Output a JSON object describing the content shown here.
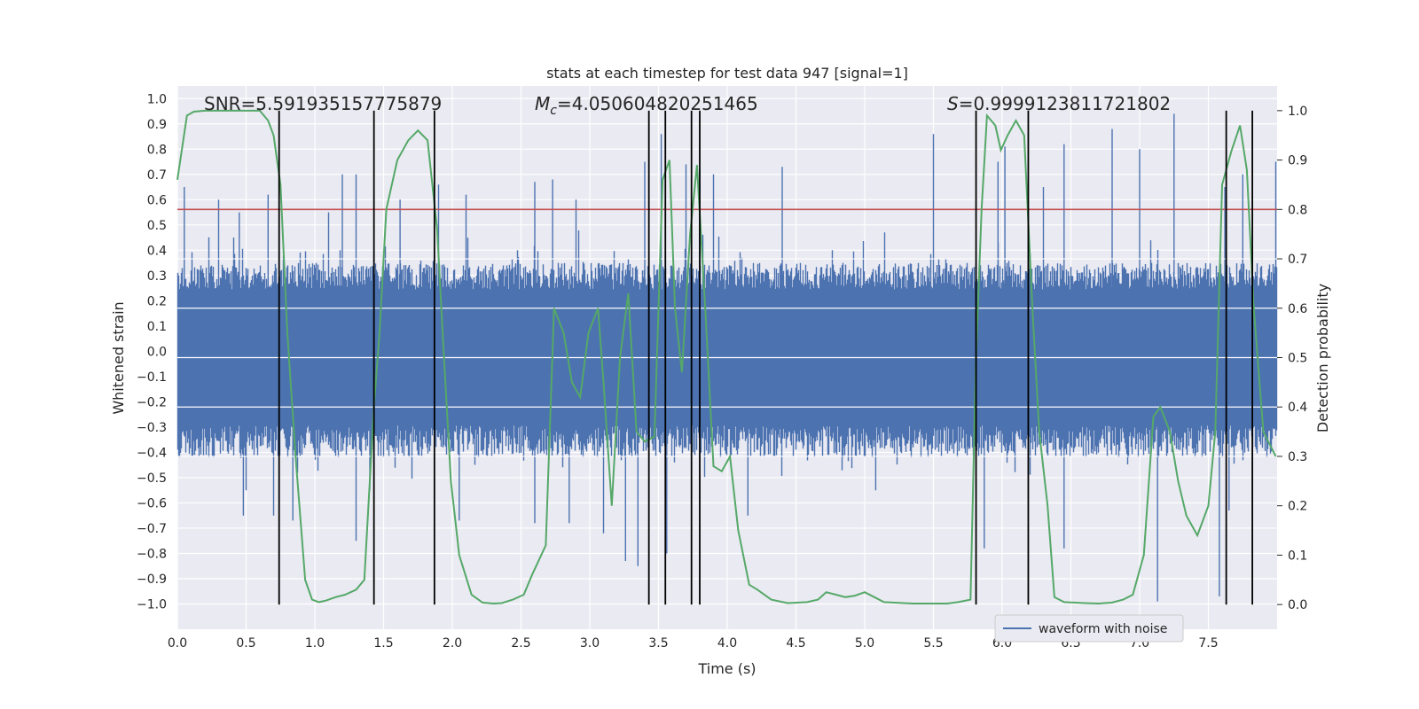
{
  "chart_data": {
    "type": "line",
    "title": "stats at each timestep for test data 947 [signal=1]",
    "xlabel": "Time (s)",
    "ylabel": "Whitened strain",
    "y2label": "Detection probability",
    "xlim": [
      0,
      8
    ],
    "ylim": [
      -1.1,
      1.05
    ],
    "y2lim": [
      -0.05,
      1.05
    ],
    "xticks": [
      "0.0",
      "0.5",
      "1.0",
      "1.5",
      "2.0",
      "2.5",
      "3.0",
      "3.5",
      "4.0",
      "4.5",
      "5.0",
      "5.5",
      "6.0",
      "6.5",
      "7.0",
      "7.5"
    ],
    "yticks": [
      "1.0",
      "0.9",
      "0.8",
      "0.7",
      "0.6",
      "0.5",
      "0.4",
      "0.3",
      "0.2",
      "0.1",
      "0.0",
      "−0.1",
      "−0.2",
      "−0.3",
      "−0.4",
      "−0.5",
      "−0.6",
      "−0.7",
      "−0.8",
      "−0.9",
      "−1.0"
    ],
    "y2ticks": [
      "1.0",
      "0.9",
      "0.8",
      "0.7",
      "0.6",
      "0.5",
      "0.4",
      "0.3",
      "0.2",
      "0.1",
      "0.0"
    ],
    "annotations": {
      "snr": "SNR=5.591935157775879",
      "mc_symbol": "M",
      "mc_sub": "c",
      "mc_value": "=4.050604820251465",
      "s_symbol": "S",
      "s_value": "=0.9999123811721802"
    },
    "legend": {
      "label": "waveform with noise",
      "location": "lower-right"
    },
    "threshold": {
      "y2": 0.8,
      "color": "#c44e52"
    },
    "markers_x": [
      0.74,
      1.43,
      1.87,
      3.43,
      3.55,
      3.74,
      3.8,
      5.81,
      6.19,
      7.63,
      7.82
    ],
    "series": [
      {
        "name": "waveform with noise",
        "axis": "left",
        "color": "#4c72b0",
        "envelope_upper": 0.35,
        "envelope_lower": -0.42,
        "peaks_up": [
          [
            0.05,
            0.65
          ],
          [
            0.3,
            0.6
          ],
          [
            0.45,
            0.55
          ],
          [
            0.66,
            0.62
          ],
          [
            1.1,
            0.55
          ],
          [
            1.2,
            0.7
          ],
          [
            1.3,
            0.7
          ],
          [
            1.62,
            0.6
          ],
          [
            1.9,
            0.66
          ],
          [
            2.1,
            0.62
          ],
          [
            2.6,
            0.67
          ],
          [
            2.73,
            0.68
          ],
          [
            2.9,
            0.6
          ],
          [
            3.4,
            0.75
          ],
          [
            3.52,
            0.86
          ],
          [
            3.7,
            0.74
          ],
          [
            3.8,
            0.72
          ],
          [
            3.9,
            0.7
          ],
          [
            4.4,
            0.73
          ],
          [
            5.5,
            0.86
          ],
          [
            5.97,
            0.75
          ],
          [
            6.02,
            0.81
          ],
          [
            6.3,
            0.65
          ],
          [
            6.45,
            0.82
          ],
          [
            6.8,
            0.88
          ],
          [
            7.0,
            0.8
          ],
          [
            7.25,
            0.94
          ],
          [
            7.62,
            0.65
          ],
          [
            7.75,
            0.7
          ],
          [
            7.99,
            0.75
          ]
        ],
        "peaks_down": [
          [
            0.5,
            -0.55
          ],
          [
            0.48,
            -0.65
          ],
          [
            0.7,
            -0.65
          ],
          [
            0.84,
            -0.67
          ],
          [
            1.3,
            -0.75
          ],
          [
            1.4,
            -0.55
          ],
          [
            2.05,
            -0.67
          ],
          [
            2.6,
            -0.68
          ],
          [
            2.85,
            -0.68
          ],
          [
            3.1,
            -0.72
          ],
          [
            3.26,
            -0.83
          ],
          [
            3.35,
            -0.85
          ],
          [
            3.56,
            -0.8
          ],
          [
            4.15,
            -0.65
          ],
          [
            5.08,
            -0.55
          ],
          [
            5.87,
            -0.78
          ],
          [
            6.45,
            -0.78
          ],
          [
            7.13,
            -0.99
          ],
          [
            7.58,
            -0.97
          ],
          [
            7.65,
            -0.63
          ]
        ]
      },
      {
        "name": "detection probability",
        "axis": "right",
        "color": "#55a868",
        "x": [
          0.0,
          0.07,
          0.12,
          0.2,
          0.6,
          0.66,
          0.7,
          0.75,
          0.8,
          0.86,
          0.93,
          0.98,
          1.03,
          1.08,
          1.15,
          1.22,
          1.3,
          1.36,
          1.43,
          1.47,
          1.52,
          1.6,
          1.68,
          1.75,
          1.82,
          1.89,
          1.93,
          1.99,
          2.05,
          2.14,
          2.22,
          2.3,
          2.36,
          2.44,
          2.52,
          2.58,
          2.68,
          2.74,
          2.81,
          2.87,
          2.93,
          2.99,
          3.06,
          3.1,
          3.16,
          3.22,
          3.28,
          3.34,
          3.4,
          3.47,
          3.53,
          3.58,
          3.62,
          3.67,
          3.73,
          3.78,
          3.84,
          3.9,
          3.96,
          4.02,
          4.08,
          4.16,
          4.22,
          4.32,
          4.44,
          4.58,
          4.66,
          4.72,
          4.79,
          4.86,
          4.93,
          5.0,
          5.07,
          5.14,
          5.35,
          5.6,
          5.68,
          5.77,
          5.81,
          5.85,
          5.89,
          5.95,
          5.99,
          6.04,
          6.1,
          6.16,
          6.22,
          6.27,
          6.33,
          6.38,
          6.45,
          6.52,
          6.6,
          6.7,
          6.8,
          6.88,
          6.95,
          7.03,
          7.1,
          7.15,
          7.22,
          7.28,
          7.34,
          7.42,
          7.5,
          7.55,
          7.6,
          7.67,
          7.73,
          7.78,
          7.83,
          7.9,
          7.99
        ],
        "y": [
          0.86,
          0.99,
          0.998,
          1.0,
          1.0,
          0.98,
          0.95,
          0.85,
          0.55,
          0.3,
          0.05,
          0.01,
          0.005,
          0.008,
          0.015,
          0.02,
          0.03,
          0.05,
          0.4,
          0.55,
          0.8,
          0.9,
          0.94,
          0.96,
          0.94,
          0.76,
          0.55,
          0.25,
          0.1,
          0.02,
          0.004,
          0.002,
          0.003,
          0.01,
          0.02,
          0.06,
          0.12,
          0.6,
          0.55,
          0.45,
          0.42,
          0.55,
          0.6,
          0.45,
          0.2,
          0.5,
          0.63,
          0.35,
          0.33,
          0.34,
          0.86,
          0.9,
          0.6,
          0.47,
          0.75,
          0.89,
          0.6,
          0.28,
          0.27,
          0.3,
          0.15,
          0.04,
          0.03,
          0.01,
          0.003,
          0.005,
          0.01,
          0.025,
          0.02,
          0.015,
          0.018,
          0.025,
          0.015,
          0.005,
          0.002,
          0.002,
          0.005,
          0.01,
          0.5,
          0.8,
          0.99,
          0.97,
          0.92,
          0.95,
          0.98,
          0.95,
          0.6,
          0.35,
          0.2,
          0.015,
          0.005,
          0.004,
          0.003,
          0.002,
          0.004,
          0.01,
          0.02,
          0.1,
          0.38,
          0.4,
          0.35,
          0.25,
          0.18,
          0.14,
          0.2,
          0.35,
          0.85,
          0.92,
          0.97,
          0.88,
          0.6,
          0.35,
          0.3
        ]
      }
    ]
  }
}
